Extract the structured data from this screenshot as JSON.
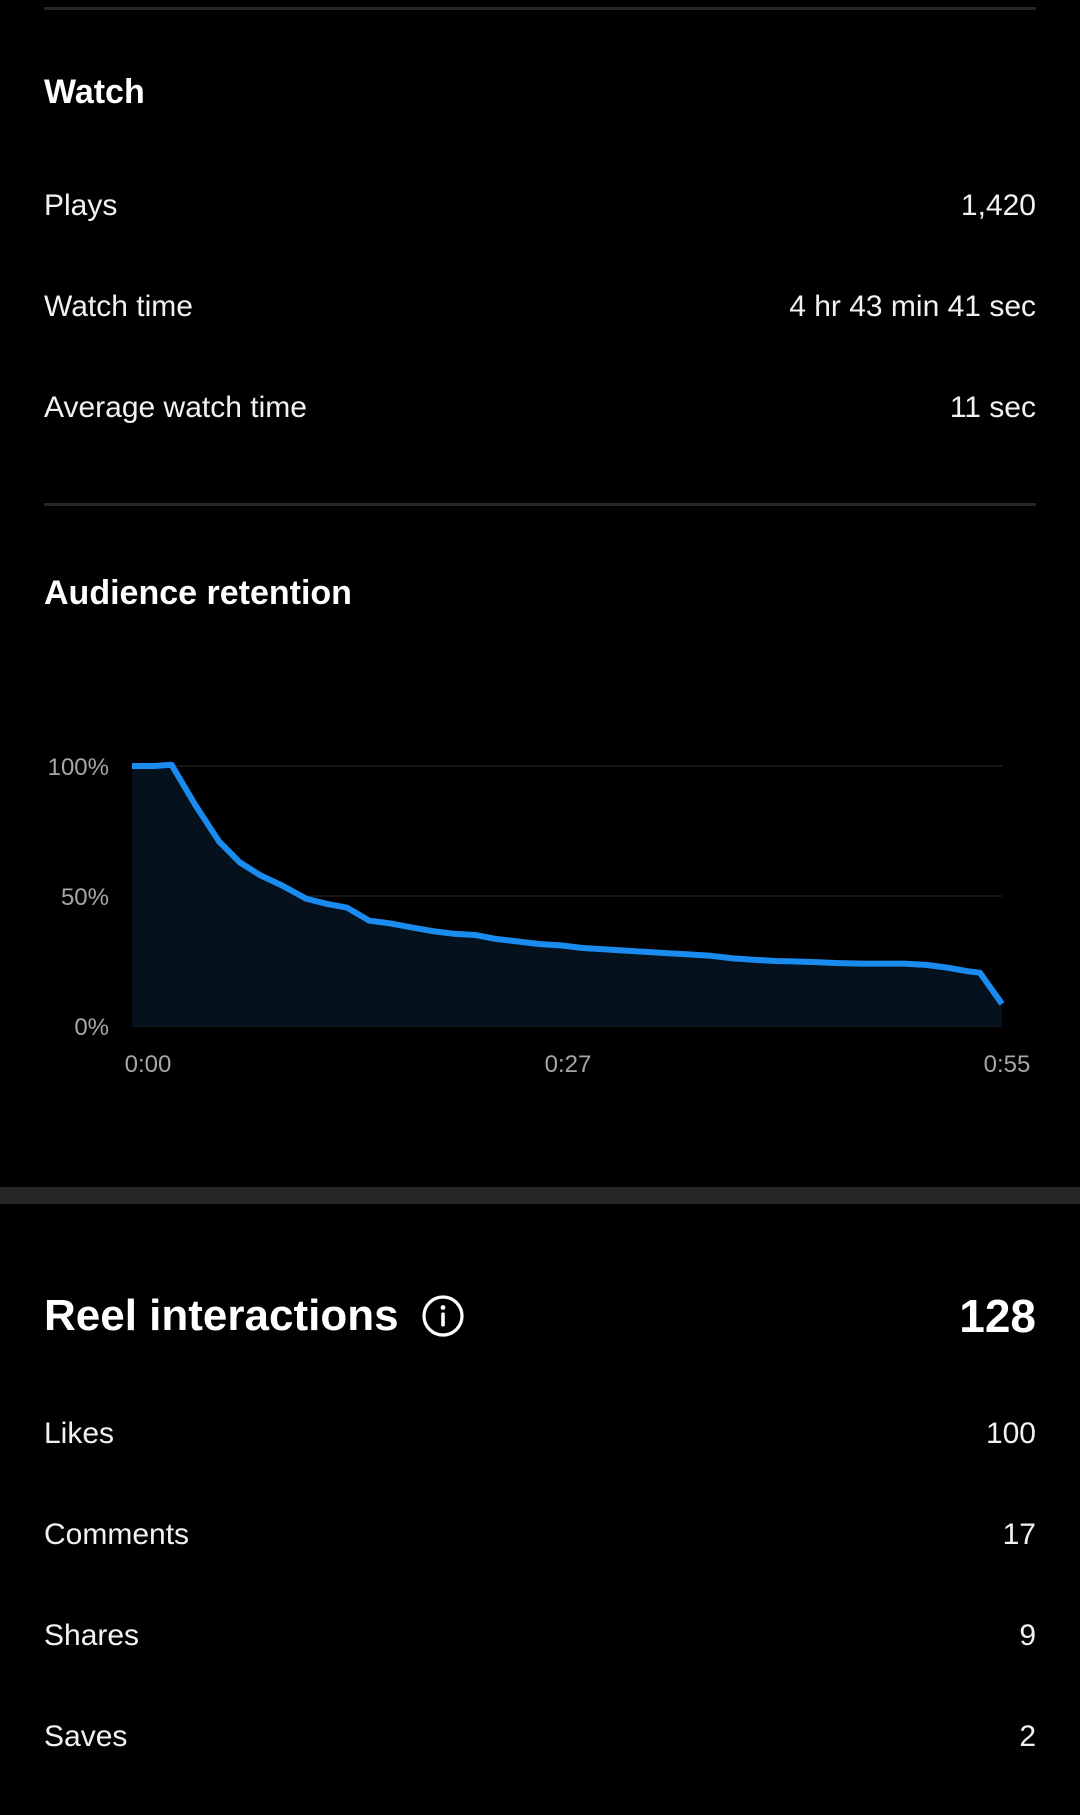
{
  "watch": {
    "title": "Watch",
    "rows": [
      {
        "label": "Plays",
        "value": "1,420"
      },
      {
        "label": "Watch time",
        "value": "4 hr 43 min 41 sec"
      },
      {
        "label": "Average watch time",
        "value": "11 sec"
      }
    ]
  },
  "retention": {
    "title": "Audience retention"
  },
  "chart_data": {
    "type": "area",
    "title": "Audience retention",
    "xlabel": "",
    "ylabel": "",
    "x_unit": "seconds",
    "y_unit": "percent",
    "xlim": [
      0,
      55
    ],
    "ylim": [
      0,
      100
    ],
    "x_tick_labels": [
      "0:00",
      "0:27",
      "0:55"
    ],
    "y_tick_labels": [
      "100%",
      "50%",
      "0%"
    ],
    "grid": true,
    "line_color": "#1a8cf0",
    "fill_color": "#06111e",
    "series": [
      {
        "x": [
          0,
          1.4,
          2.5,
          4,
          5.5,
          6.8,
          8.1,
          9.5,
          11,
          12.3,
          13.6,
          15,
          16.3,
          17.6,
          19,
          20.3,
          21.7,
          23,
          24.4,
          25.8,
          27.1,
          28.5,
          29.8,
          31.2,
          32.5,
          33.9,
          35.3,
          36.6,
          38,
          39.3,
          40.7,
          42,
          43.4,
          44.7,
          46.1,
          47.5,
          48.8,
          50.2,
          51.5,
          52.9,
          53.6,
          55
        ],
        "y": [
          100,
          100,
          100.5,
          85,
          71,
          63,
          58,
          54,
          49,
          47,
          45.5,
          40.5,
          39.5,
          38,
          36.5,
          35.5,
          35,
          33.5,
          32.5,
          31.5,
          31,
          30,
          29.5,
          29,
          28.5,
          28,
          27.5,
          27,
          26,
          25.5,
          25,
          24.8,
          24.5,
          24.2,
          24,
          24,
          24,
          23.5,
          22.5,
          21,
          20.5,
          8.5
        ]
      }
    ]
  },
  "interactions": {
    "title": "Reel interactions",
    "total": "128",
    "info_icon": "info-circle-icon",
    "rows": [
      {
        "label": "Likes",
        "value": "100"
      },
      {
        "label": "Comments",
        "value": "17"
      },
      {
        "label": "Shares",
        "value": "9"
      },
      {
        "label": "Saves",
        "value": "2"
      }
    ]
  },
  "colors": {
    "background": "#000000",
    "divider": "#262626",
    "text": "#ffffff",
    "muted_text": "#a6a6a6",
    "accent": "#1a8cf0"
  }
}
